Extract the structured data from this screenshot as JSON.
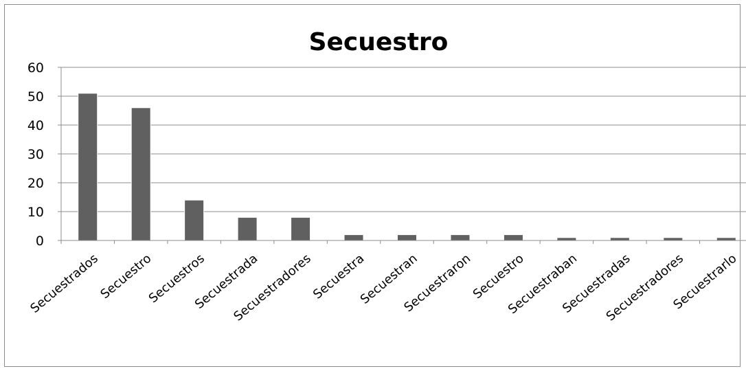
{
  "chart_data": {
    "type": "bar",
    "title": "Secuestro",
    "xlabel": "",
    "ylabel": "",
    "ylim": [
      0,
      60
    ],
    "yticks": [
      0,
      10,
      20,
      30,
      40,
      50,
      60
    ],
    "grid": true,
    "legend": "none",
    "bar_color": "#606060",
    "categories": [
      "Secuestrados",
      "Secuestro",
      "Secuestros",
      "Secuestrada",
      "Secuestradores",
      "Secuestra",
      "Secuestran",
      "Secuestraron",
      "Secuestro",
      "Secuestraban",
      "Secuestradas",
      "Secuestradores",
      "Secuestrarlo"
    ],
    "values": [
      51,
      46,
      14,
      8,
      8,
      2,
      2,
      2,
      2,
      1,
      1,
      1,
      1
    ]
  }
}
